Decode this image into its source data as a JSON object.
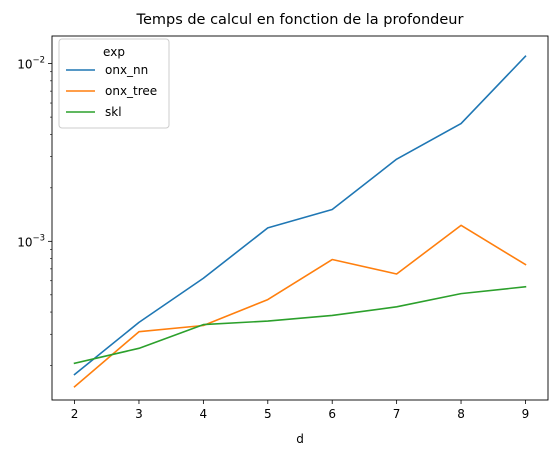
{
  "chart_data": {
    "type": "line",
    "title": "Temps de calcul en fonction de la profondeur",
    "xlabel": "d",
    "ylabel": "",
    "x": [
      2,
      3,
      4,
      5,
      6,
      7,
      8,
      9
    ],
    "xlim": [
      1.65,
      9.35
    ],
    "ylim": [
      0.000128,
      0.0143
    ],
    "yscale": "log",
    "grid": false,
    "x_ticks": [
      2,
      3,
      4,
      5,
      6,
      7,
      8,
      9
    ],
    "y_ticks": [
      {
        "value": 0.001,
        "base": "10",
        "exponent": "−3"
      },
      {
        "value": 0.01,
        "base": "10",
        "exponent": "−2"
      }
    ],
    "legend": {
      "title": "exp",
      "placement": "top-left"
    },
    "series": [
      {
        "name": "onx_nn",
        "color": "#1f77b4",
        "values": [
          0.000178,
          0.00035,
          0.00062,
          0.00119,
          0.00151,
          0.0029,
          0.0046,
          0.011
        ]
      },
      {
        "name": "onx_tree",
        "color": "#ff7f0e",
        "values": [
          0.000152,
          0.00031,
          0.000336,
          0.00047,
          0.00079,
          0.000655,
          0.00123,
          0.00074
        ]
      },
      {
        "name": "skl",
        "color": "#2ca02c",
        "values": [
          0.000206,
          0.00025,
          0.00034,
          0.000356,
          0.000383,
          0.000428,
          0.000508,
          0.000555
        ]
      }
    ]
  }
}
